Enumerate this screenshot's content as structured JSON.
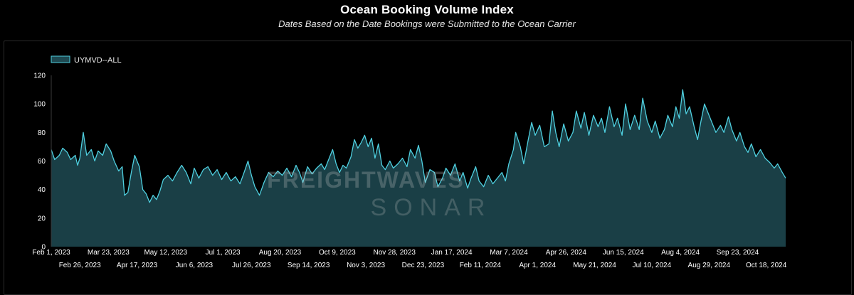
{
  "header": {
    "title": "Ocean Booking Volume Index",
    "subtitle": "Dates Based on the Date Bookings were Submitted to the Ocean Carrier"
  },
  "watermark": {
    "line1": "FREIGHTWAVES",
    "line2": "SONAR"
  },
  "colors": {
    "line": "#4fd0e0",
    "fill": "#1f4a52",
    "grid": "#2b2b2b",
    "background": "#000000"
  },
  "chart_data": {
    "type": "area",
    "x_range": [
      "2023-02-01",
      "2024-11-04"
    ],
    "ylim": [
      0,
      120
    ],
    "y_ticks": [
      0,
      20,
      40,
      60,
      80,
      100,
      120
    ],
    "grid": false,
    "legend_position": "top-left",
    "x_tick_labels_row1": [
      "Feb 1, 2023",
      "Mar 23, 2023",
      "May 12, 2023",
      "Jul 1, 2023",
      "Aug 20, 2023",
      "Oct 9, 2023",
      "Nov 28, 2023",
      "Jan 17, 2024",
      "Mar 7, 2024",
      "Apr 26, 2024",
      "Jun 15, 2024",
      "Aug 4, 2024",
      "Sep 23, 2024"
    ],
    "x_tick_labels_row2": [
      "Feb 26, 2023",
      "Apr 17, 2023",
      "Jun 6, 2023",
      "Jul 26, 2023",
      "Sep 14, 2023",
      "Nov 3, 2023",
      "Dec 23, 2023",
      "Feb 11, 2024",
      "Apr 1, 2024",
      "May 21, 2024",
      "Jul 10, 2024",
      "Aug 29, 2024",
      "Oct 18, 2024"
    ],
    "series": [
      {
        "name": "UYMVD--ALL",
        "points": [
          [
            "2023-02-01",
            68
          ],
          [
            "2023-02-04",
            61
          ],
          [
            "2023-02-08",
            64
          ],
          [
            "2023-02-11",
            69
          ],
          [
            "2023-02-15",
            66
          ],
          [
            "2023-02-18",
            61
          ],
          [
            "2023-02-22",
            64
          ],
          [
            "2023-02-24",
            57
          ],
          [
            "2023-02-26",
            62
          ],
          [
            "2023-03-01",
            80
          ],
          [
            "2023-03-04",
            64
          ],
          [
            "2023-03-08",
            68
          ],
          [
            "2023-03-11",
            60
          ],
          [
            "2023-03-14",
            67
          ],
          [
            "2023-03-18",
            64
          ],
          [
            "2023-03-21",
            72
          ],
          [
            "2023-03-25",
            67
          ],
          [
            "2023-03-28",
            60
          ],
          [
            "2023-04-01",
            53
          ],
          [
            "2023-04-04",
            56
          ],
          [
            "2023-04-06",
            36
          ],
          [
            "2023-04-09",
            38
          ],
          [
            "2023-04-12",
            52
          ],
          [
            "2023-04-15",
            64
          ],
          [
            "2023-04-19",
            56
          ],
          [
            "2023-04-22",
            40
          ],
          [
            "2023-04-25",
            37
          ],
          [
            "2023-04-28",
            31
          ],
          [
            "2023-05-01",
            36
          ],
          [
            "2023-05-04",
            33
          ],
          [
            "2023-05-07",
            39
          ],
          [
            "2023-05-10",
            47
          ],
          [
            "2023-05-14",
            50
          ],
          [
            "2023-05-18",
            46
          ],
          [
            "2023-05-22",
            52
          ],
          [
            "2023-05-26",
            57
          ],
          [
            "2023-05-30",
            52
          ],
          [
            "2023-06-03",
            44
          ],
          [
            "2023-06-06",
            55
          ],
          [
            "2023-06-10",
            48
          ],
          [
            "2023-06-14",
            54
          ],
          [
            "2023-06-18",
            56
          ],
          [
            "2023-06-22",
            50
          ],
          [
            "2023-06-26",
            54
          ],
          [
            "2023-06-30",
            47
          ],
          [
            "2023-07-04",
            52
          ],
          [
            "2023-07-08",
            46
          ],
          [
            "2023-07-12",
            49
          ],
          [
            "2023-07-16",
            44
          ],
          [
            "2023-07-20",
            53
          ],
          [
            "2023-07-23",
            60
          ],
          [
            "2023-07-26",
            50
          ],
          [
            "2023-07-29",
            42
          ],
          [
            "2023-08-02",
            36
          ],
          [
            "2023-08-06",
            45
          ],
          [
            "2023-08-10",
            52
          ],
          [
            "2023-08-14",
            49
          ],
          [
            "2023-08-18",
            53
          ],
          [
            "2023-08-22",
            50
          ],
          [
            "2023-08-26",
            55
          ],
          [
            "2023-08-30",
            49
          ],
          [
            "2023-09-03",
            57
          ],
          [
            "2023-09-06",
            52
          ],
          [
            "2023-09-09",
            45
          ],
          [
            "2023-09-13",
            56
          ],
          [
            "2023-09-17",
            51
          ],
          [
            "2023-09-21",
            55
          ],
          [
            "2023-09-25",
            58
          ],
          [
            "2023-09-28",
            54
          ],
          [
            "2023-10-02",
            62
          ],
          [
            "2023-10-05",
            68
          ],
          [
            "2023-10-08",
            58
          ],
          [
            "2023-10-11",
            52
          ],
          [
            "2023-10-14",
            57
          ],
          [
            "2023-10-17",
            55
          ],
          [
            "2023-10-21",
            63
          ],
          [
            "2023-10-24",
            75
          ],
          [
            "2023-10-27",
            69
          ],
          [
            "2023-10-30",
            73
          ],
          [
            "2023-11-02",
            78
          ],
          [
            "2023-11-05",
            70
          ],
          [
            "2023-11-08",
            76
          ],
          [
            "2023-11-11",
            62
          ],
          [
            "2023-11-14",
            72
          ],
          [
            "2023-11-17",
            57
          ],
          [
            "2023-11-20",
            54
          ],
          [
            "2023-11-24",
            60
          ],
          [
            "2023-11-27",
            55
          ],
          [
            "2023-12-01",
            58
          ],
          [
            "2023-12-05",
            62
          ],
          [
            "2023-12-09",
            56
          ],
          [
            "2023-12-12",
            68
          ],
          [
            "2023-12-16",
            62
          ],
          [
            "2023-12-19",
            71
          ],
          [
            "2023-12-22",
            60
          ],
          [
            "2023-12-25",
            45
          ],
          [
            "2023-12-29",
            54
          ],
          [
            "2024-01-02",
            52
          ],
          [
            "2024-01-05",
            42
          ],
          [
            "2024-01-09",
            48
          ],
          [
            "2024-01-12",
            55
          ],
          [
            "2024-01-16",
            50
          ],
          [
            "2024-01-20",
            58
          ],
          [
            "2024-01-24",
            46
          ],
          [
            "2024-01-27",
            52
          ],
          [
            "2024-01-31",
            41
          ],
          [
            "2024-02-03",
            48
          ],
          [
            "2024-02-07",
            56
          ],
          [
            "2024-02-10",
            46
          ],
          [
            "2024-02-14",
            42
          ],
          [
            "2024-02-18",
            50
          ],
          [
            "2024-02-22",
            44
          ],
          [
            "2024-02-26",
            48
          ],
          [
            "2024-03-01",
            52
          ],
          [
            "2024-03-04",
            46
          ],
          [
            "2024-03-07",
            58
          ],
          [
            "2024-03-11",
            68
          ],
          [
            "2024-03-13",
            80
          ],
          [
            "2024-03-17",
            70
          ],
          [
            "2024-03-20",
            58
          ],
          [
            "2024-03-24",
            75
          ],
          [
            "2024-03-27",
            87
          ],
          [
            "2024-03-30",
            78
          ],
          [
            "2024-04-03",
            85
          ],
          [
            "2024-04-07",
            70
          ],
          [
            "2024-04-11",
            72
          ],
          [
            "2024-04-14",
            95
          ],
          [
            "2024-04-17",
            80
          ],
          [
            "2024-04-20",
            70
          ],
          [
            "2024-04-24",
            86
          ],
          [
            "2024-04-28",
            74
          ],
          [
            "2024-05-02",
            80
          ],
          [
            "2024-05-05",
            95
          ],
          [
            "2024-05-09",
            83
          ],
          [
            "2024-05-12",
            94
          ],
          [
            "2024-05-16",
            78
          ],
          [
            "2024-05-20",
            92
          ],
          [
            "2024-05-24",
            84
          ],
          [
            "2024-05-27",
            90
          ],
          [
            "2024-05-30",
            80
          ],
          [
            "2024-06-03",
            98
          ],
          [
            "2024-06-07",
            84
          ],
          [
            "2024-06-10",
            90
          ],
          [
            "2024-06-14",
            78
          ],
          [
            "2024-06-17",
            100
          ],
          [
            "2024-06-21",
            82
          ],
          [
            "2024-06-25",
            92
          ],
          [
            "2024-06-29",
            82
          ],
          [
            "2024-07-02",
            104
          ],
          [
            "2024-07-06",
            88
          ],
          [
            "2024-07-10",
            80
          ],
          [
            "2024-07-13",
            88
          ],
          [
            "2024-07-17",
            76
          ],
          [
            "2024-07-21",
            82
          ],
          [
            "2024-07-24",
            92
          ],
          [
            "2024-07-28",
            84
          ],
          [
            "2024-07-31",
            98
          ],
          [
            "2024-08-03",
            90
          ],
          [
            "2024-08-06",
            110
          ],
          [
            "2024-08-09",
            93
          ],
          [
            "2024-08-12",
            98
          ],
          [
            "2024-08-16",
            84
          ],
          [
            "2024-08-19",
            75
          ],
          [
            "2024-08-22",
            88
          ],
          [
            "2024-08-25",
            100
          ],
          [
            "2024-08-28",
            94
          ],
          [
            "2024-09-01",
            86
          ],
          [
            "2024-09-04",
            80
          ],
          [
            "2024-09-08",
            85
          ],
          [
            "2024-09-11",
            80
          ],
          [
            "2024-09-15",
            91
          ],
          [
            "2024-09-18",
            82
          ],
          [
            "2024-09-22",
            74
          ],
          [
            "2024-09-25",
            80
          ],
          [
            "2024-09-29",
            70
          ],
          [
            "2024-10-02",
            66
          ],
          [
            "2024-10-05",
            72
          ],
          [
            "2024-10-09",
            63
          ],
          [
            "2024-10-13",
            68
          ],
          [
            "2024-10-17",
            62
          ],
          [
            "2024-10-21",
            59
          ],
          [
            "2024-10-25",
            55
          ],
          [
            "2024-10-28",
            58
          ],
          [
            "2024-11-01",
            52
          ],
          [
            "2024-11-04",
            48
          ]
        ]
      }
    ]
  }
}
